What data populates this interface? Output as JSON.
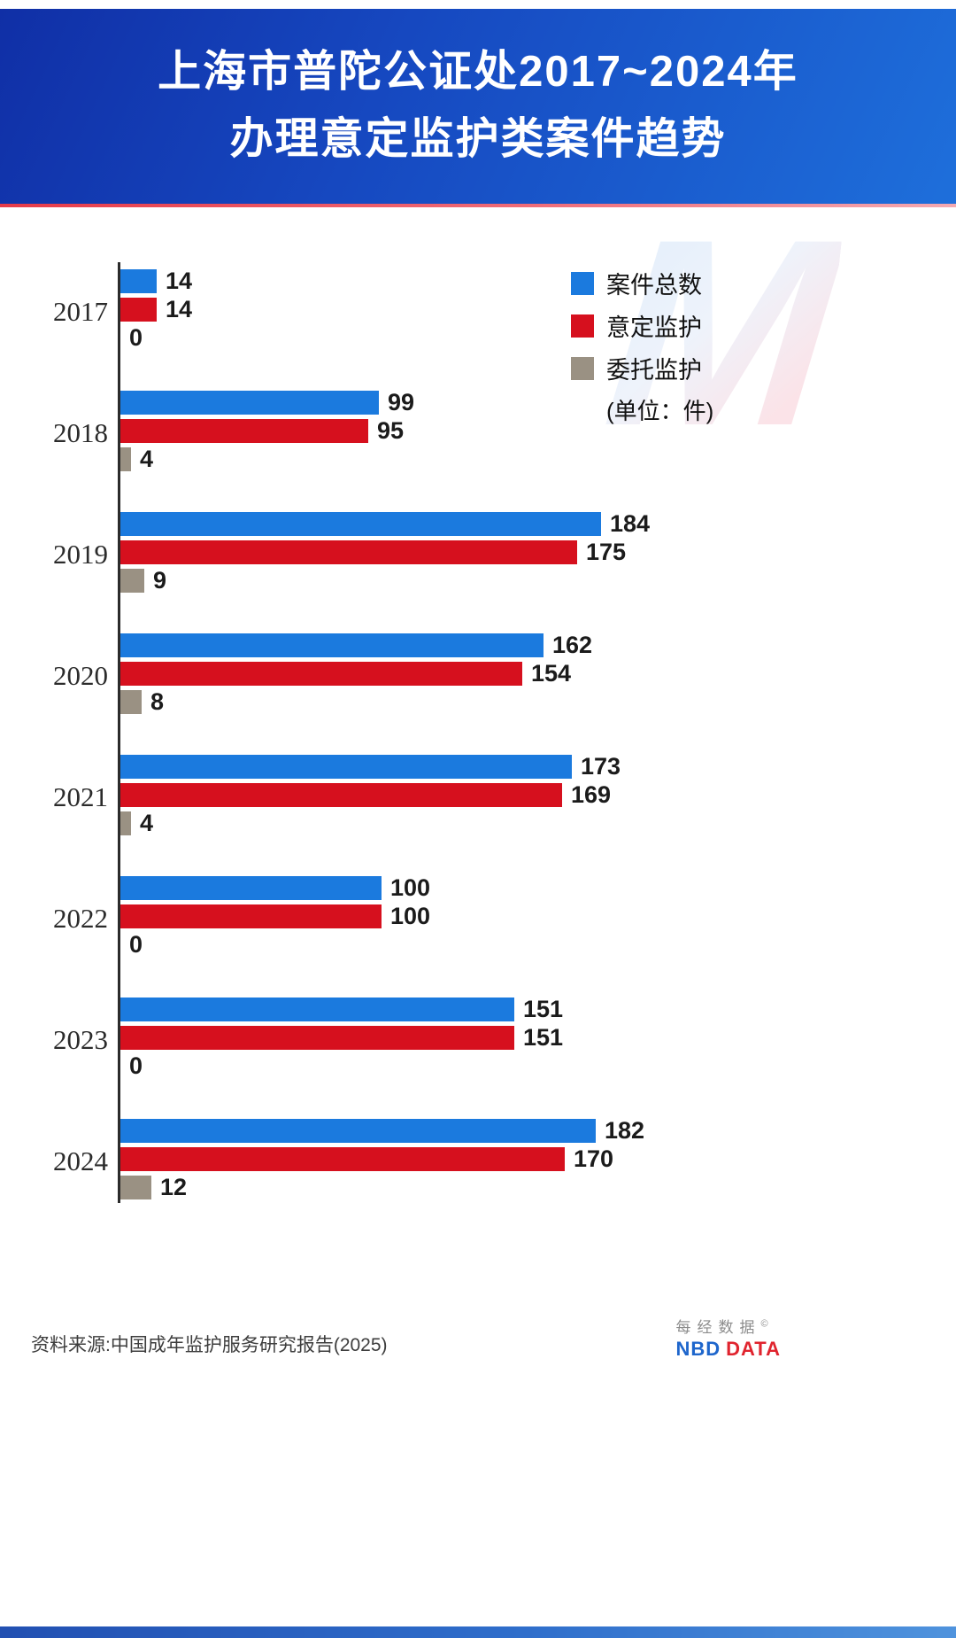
{
  "header": {
    "title_line1": "上海市普陀公证处2017~2024年",
    "title_line2": "办理意定监护类案件趋势"
  },
  "legend": {
    "unit_note": "(单位：件)"
  },
  "chart_data": {
    "type": "bar",
    "orientation": "horizontal",
    "title": "上海市普陀公证处2017~2024年办理意定监护类案件趋势",
    "categories": [
      "2017",
      "2018",
      "2019",
      "2020",
      "2021",
      "2022",
      "2023",
      "2024"
    ],
    "series": [
      {
        "name": "案件总数",
        "color": "#1b7ade",
        "values": [
          14,
          99,
          184,
          162,
          173,
          100,
          151,
          182
        ]
      },
      {
        "name": "意定监护",
        "color": "#d6101e",
        "values": [
          14,
          95,
          175,
          154,
          169,
          100,
          151,
          170
        ]
      },
      {
        "name": "委托监护",
        "color": "#9a9183",
        "values": [
          0,
          4,
          9,
          8,
          4,
          0,
          0,
          12
        ]
      }
    ],
    "value_max": 184,
    "legend_position": "top-right",
    "grid": false,
    "unit": "件"
  },
  "footer": {
    "source": "资料来源:中国成年监护服务研究报告(2025)",
    "brand": {
      "cn": "每经数据",
      "copyright": "©",
      "en_blue": "NBD",
      "en_red": "DATA",
      "watermark_letter": "M"
    }
  }
}
